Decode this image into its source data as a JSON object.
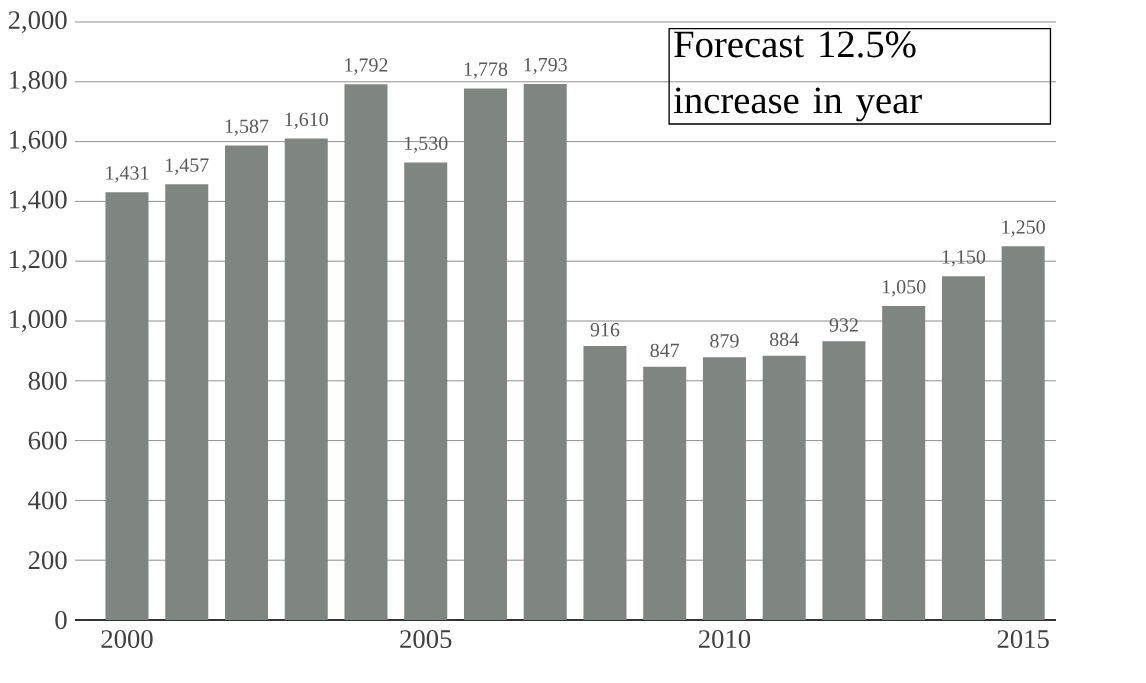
{
  "chart_data": {
    "type": "bar",
    "categories": [
      "2000",
      null,
      null,
      null,
      null,
      "2005",
      null,
      null,
      null,
      null,
      "2010",
      null,
      null,
      null,
      null,
      "2015"
    ],
    "values": [
      1431,
      1457,
      1587,
      1610,
      1792,
      1530,
      1778,
      1793,
      916,
      847,
      879,
      884,
      932,
      1050,
      1150,
      1250
    ],
    "value_labels": [
      "1,431",
      "1,457",
      "1,587",
      "1,610",
      "1,792",
      "1,530",
      "1,778",
      "1,793",
      "916",
      "847",
      "879",
      "884",
      "932",
      "1,050",
      "1,150",
      "1,250"
    ],
    "color": "#7f8581",
    "ylim": [
      0,
      2000
    ],
    "yticks": [
      0,
      200,
      400,
      600,
      800,
      {
        "value": 1000,
        "label": "1,000"
      },
      {
        "value": 1200,
        "label": "1,200"
      },
      {
        "value": 1400,
        "label": "1,400"
      },
      {
        "value": 1600,
        "label": "1,600"
      },
      {
        "value": 1800,
        "label": "1,800"
      },
      {
        "value": 2000,
        "label": "2,000"
      }
    ],
    "grid": "y",
    "annotations": [
      "Forecast 12.5% increase in year"
    ]
  }
}
